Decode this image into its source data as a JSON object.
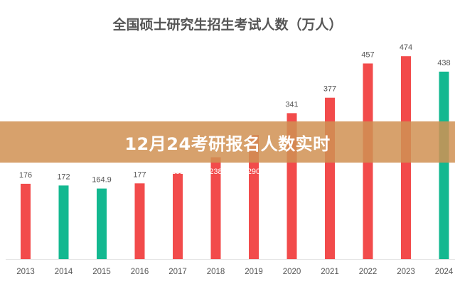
{
  "chart_data": {
    "type": "bar",
    "title": "全国硕士研究生招生考试人数（万人）",
    "xlabel": "",
    "ylabel": "",
    "categories": [
      "2013",
      "2014",
      "2015",
      "2016",
      "2017",
      "2018",
      "2019",
      "2020",
      "2021",
      "2022",
      "2023",
      "2024"
    ],
    "values": [
      176,
      172,
      164.9,
      177,
      201,
      238,
      290,
      341,
      377,
      457,
      474,
      438
    ],
    "value_labels": [
      "176",
      "172",
      "164.9",
      "177",
      "201",
      "238",
      "290",
      "341",
      "377",
      "457",
      "474",
      "438"
    ],
    "bar_colors": [
      "#f24b4b",
      "#13b890",
      "#13b890",
      "#f24b4b",
      "#f24b4b",
      "#f24b4b",
      "#f24b4b",
      "#f24b4b",
      "#f24b4b",
      "#f24b4b",
      "#f24b4b",
      "#13b890"
    ],
    "ylim": [
      0,
      500
    ],
    "grid": false,
    "legend": "none"
  },
  "banner": {
    "text": "12月24考研报名人数实时",
    "color": "#d09254"
  }
}
